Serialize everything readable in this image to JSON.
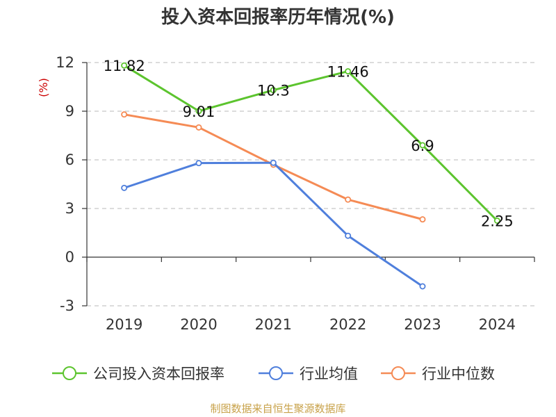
{
  "chart_data": {
    "type": "line",
    "title": "投入资本回报率历年情况(%)",
    "ylabel": "(%)",
    "categories": [
      "2019",
      "2020",
      "2021",
      "2022",
      "2023",
      "2024"
    ],
    "ylim": [
      -3,
      12
    ],
    "yticks": [
      -3,
      0,
      3,
      6,
      9,
      12
    ],
    "grid": true,
    "legend_position": "bottom",
    "series": [
      {
        "name": "公司投入资本回报率",
        "color": "#5cc42e",
        "values": [
          11.82,
          9.01,
          10.3,
          11.46,
          6.9,
          2.25
        ],
        "labels": [
          "11.82",
          "9.01",
          "10.3",
          "11.46",
          "6.9",
          "2.25"
        ]
      },
      {
        "name": "行业均值",
        "color": "#4f7fdc",
        "values": [
          4.27,
          5.8,
          5.82,
          1.32,
          -1.8,
          null
        ]
      },
      {
        "name": "行业中位数",
        "color": "#f58b55",
        "values": [
          8.8,
          8.0,
          5.7,
          3.55,
          2.33,
          null
        ]
      }
    ]
  },
  "source": "制图数据来自恒生聚源数据库"
}
